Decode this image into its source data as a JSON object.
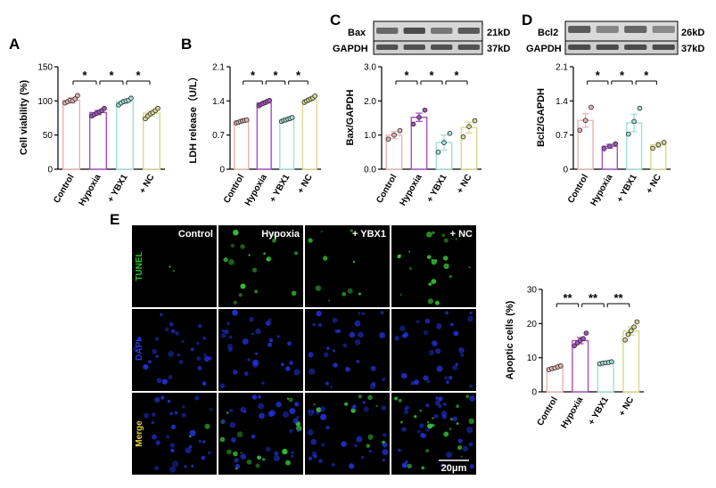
{
  "panels": {
    "A": "A",
    "B": "B",
    "C": "C",
    "D": "D",
    "E": "E"
  },
  "categories": [
    "Control",
    "Hypoxia",
    "+ YBX1",
    "+ NC"
  ],
  "group_colors": [
    "#e8b4b4",
    "#a64fc4",
    "#9fe0d6",
    "#d8d890"
  ],
  "chart_data": [
    {
      "id": "A",
      "type": "bar",
      "categories": [
        "Control",
        "Hypoxia",
        "+ YBX1",
        "+ NC"
      ],
      "values": [
        101,
        83,
        99,
        82
      ],
      "errors": [
        4,
        3,
        3,
        4
      ],
      "points": [
        [
          97,
          99,
          101,
          100,
          103,
          108
        ],
        [
          78,
          80,
          82,
          84,
          86,
          89
        ],
        [
          94,
          97,
          99,
          100,
          101,
          104
        ],
        [
          74,
          78,
          81,
          83,
          86,
          89
        ]
      ],
      "ylabel": "Cell viability (%)",
      "yticks": [
        0,
        50,
        100,
        150
      ],
      "ylim": [
        0,
        150
      ],
      "sig": [
        {
          "from": 0,
          "to": 1,
          "label": "*"
        },
        {
          "from": 1,
          "to": 2,
          "label": "*"
        },
        {
          "from": 2,
          "to": 3,
          "label": "*"
        }
      ]
    },
    {
      "id": "B",
      "type": "bar",
      "categories": [
        "Control",
        "Hypoxia",
        "+ YBX1",
        "+ NC"
      ],
      "values": [
        0.98,
        1.36,
        1.02,
        1.43
      ],
      "errors": [
        0.02,
        0.03,
        0.02,
        0.03
      ],
      "points": [
        [
          0.95,
          0.96,
          0.98,
          0.99,
          1.0,
          1.01
        ],
        [
          1.3,
          1.33,
          1.35,
          1.37,
          1.39,
          1.41
        ],
        [
          0.98,
          1.0,
          1.01,
          1.03,
          1.04,
          1.06
        ],
        [
          1.37,
          1.4,
          1.42,
          1.44,
          1.46,
          1.5
        ]
      ],
      "ylabel": "LDH  release（U/L）",
      "yticks": [
        "0",
        "0.7",
        "1.4",
        "2.1"
      ],
      "ylim": [
        0,
        2.1
      ],
      "sig": [
        {
          "from": 0,
          "to": 1,
          "label": "*"
        },
        {
          "from": 1,
          "to": 2,
          "label": "*"
        },
        {
          "from": 2,
          "to": 3,
          "label": "*"
        }
      ]
    },
    {
      "id": "C",
      "type": "bar",
      "categories": [
        "Control",
        "Hypoxia",
        "+ YBX1",
        "+ NC"
      ],
      "values": [
        1.0,
        1.52,
        0.78,
        1.22
      ],
      "errors": [
        0.1,
        0.12,
        0.22,
        0.16
      ],
      "points": [
        [
          0.88,
          1.0,
          1.13
        ],
        [
          1.32,
          1.52,
          1.73
        ],
        [
          0.5,
          0.78,
          1.05
        ],
        [
          0.95,
          1.25,
          1.42
        ]
      ],
      "ylabel": "Bax/GAPDH",
      "yticks": [
        "0.0",
        "1.0",
        "2.0",
        "3.0"
      ],
      "ylim": [
        0,
        3
      ],
      "sig": [
        {
          "from": 0,
          "to": 1,
          "label": "*"
        },
        {
          "from": 1,
          "to": 2,
          "label": "*"
        },
        {
          "from": 2,
          "to": 3,
          "label": "*"
        }
      ]
    },
    {
      "id": "D",
      "type": "bar",
      "categories": [
        "Control",
        "Hypoxia",
        "+ YBX1",
        "+ NC"
      ],
      "values": [
        1.0,
        0.47,
        0.95,
        0.5
      ],
      "errors": [
        0.14,
        0.04,
        0.18,
        0.05
      ],
      "points": [
        [
          0.8,
          1.0,
          1.27
        ],
        [
          0.42,
          0.47,
          0.52
        ],
        [
          0.72,
          0.98,
          1.25
        ],
        [
          0.43,
          0.5,
          0.55
        ]
      ],
      "ylabel": "Bcl2/GAPDH",
      "yticks": [
        "0",
        "0.7",
        "1.4",
        "2.1"
      ],
      "ylim": [
        0,
        2.1
      ],
      "sig": [
        {
          "from": 0,
          "to": 1,
          "label": "*"
        },
        {
          "from": 1,
          "to": 2,
          "label": "*"
        },
        {
          "from": 2,
          "to": 3,
          "label": "*"
        }
      ]
    },
    {
      "id": "E2",
      "type": "bar",
      "categories": [
        "Control",
        "Hypoxia",
        "+ YBX1",
        "+ NC"
      ],
      "values": [
        7,
        15,
        8.5,
        17.8
      ],
      "errors": [
        0.4,
        0.9,
        0.3,
        1.2
      ],
      "points": [
        [
          6.5,
          6.8,
          7.0,
          7.3,
          7.6
        ],
        [
          13.5,
          14.3,
          15.0,
          15.6,
          17.2
        ],
        [
          8.2,
          8.4,
          8.5,
          8.6,
          8.8
        ],
        [
          15.2,
          16.8,
          17.9,
          19.0,
          20.5
        ]
      ],
      "ylabel": "Apoptic cells (%)",
      "yticks": [
        0,
        10,
        20,
        30
      ],
      "ylim": [
        0,
        30
      ],
      "sig": [
        {
          "from": 0,
          "to": 1,
          "label": "**"
        },
        {
          "from": 1,
          "to": 2,
          "label": "**"
        },
        {
          "from": 2,
          "to": 3,
          "label": "**"
        }
      ]
    }
  ],
  "blots": {
    "C": {
      "rows": [
        {
          "name": "Bax",
          "size": "21kD"
        },
        {
          "name": "GAPDH",
          "size": "37kD"
        }
      ]
    },
    "D": {
      "rows": [
        {
          "name": "Bcl2",
          "size": "26kD"
        },
        {
          "name": "GAPDH",
          "size": "37kD"
        }
      ]
    }
  },
  "micrographs": {
    "columns": [
      "Control",
      "Hypoxia",
      "+ YBX1",
      "+ NC"
    ],
    "rows": [
      {
        "label": "TUNEL",
        "color": "#22c022"
      },
      {
        "label": "DAPI",
        "color": "#2a3ad8"
      },
      {
        "label": "Merge",
        "color": "#e0d040"
      }
    ],
    "scale_bar": "20μm"
  }
}
